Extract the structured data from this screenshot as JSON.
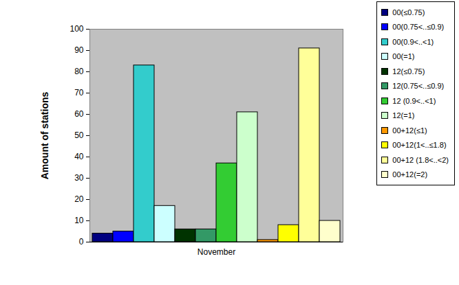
{
  "chart_data": {
    "type": "bar",
    "y_label": "Amount of stations",
    "categories": [
      "November"
    ],
    "series": [
      {
        "name": "00(≤0.75)",
        "color": "#000080",
        "values": [
          4
        ]
      },
      {
        "name": "00(0.75<..≤0.9)",
        "color": "#0000ff",
        "values": [
          5
        ]
      },
      {
        "name": "00(0.9<..<1)",
        "color": "#33cccc",
        "values": [
          83
        ]
      },
      {
        "name": "00(=1)",
        "color": "#ccffff",
        "values": [
          17
        ]
      },
      {
        "name": "12(≤0.75)",
        "color": "#003300",
        "values": [
          6
        ]
      },
      {
        "name": "12(0.75<..≤0.9)",
        "color": "#339966",
        "values": [
          6
        ]
      },
      {
        "name": "12 (0.9<..<1)",
        "color": "#33cc33",
        "values": [
          37
        ]
      },
      {
        "name": "12(=1)",
        "color": "#ccffcc",
        "values": [
          61
        ]
      },
      {
        "name": "00+12(≤1)",
        "color": "#ff9900",
        "values": [
          1
        ]
      },
      {
        "name": "00+12(1<..≤1.8)",
        "color": "#ffff00",
        "values": [
          8
        ]
      },
      {
        "name": "00+12 (1.8<..<2)",
        "color": "#ffff99",
        "values": [
          91
        ]
      },
      {
        "name": "00+12(=2)",
        "color": "#ffffcc",
        "values": [
          10
        ]
      }
    ],
    "ylim": [
      0,
      100
    ],
    "yticks": [
      0,
      10,
      20,
      30,
      40,
      50,
      60,
      70,
      80,
      90,
      100
    ],
    "grid": false,
    "legend": "top-right"
  }
}
